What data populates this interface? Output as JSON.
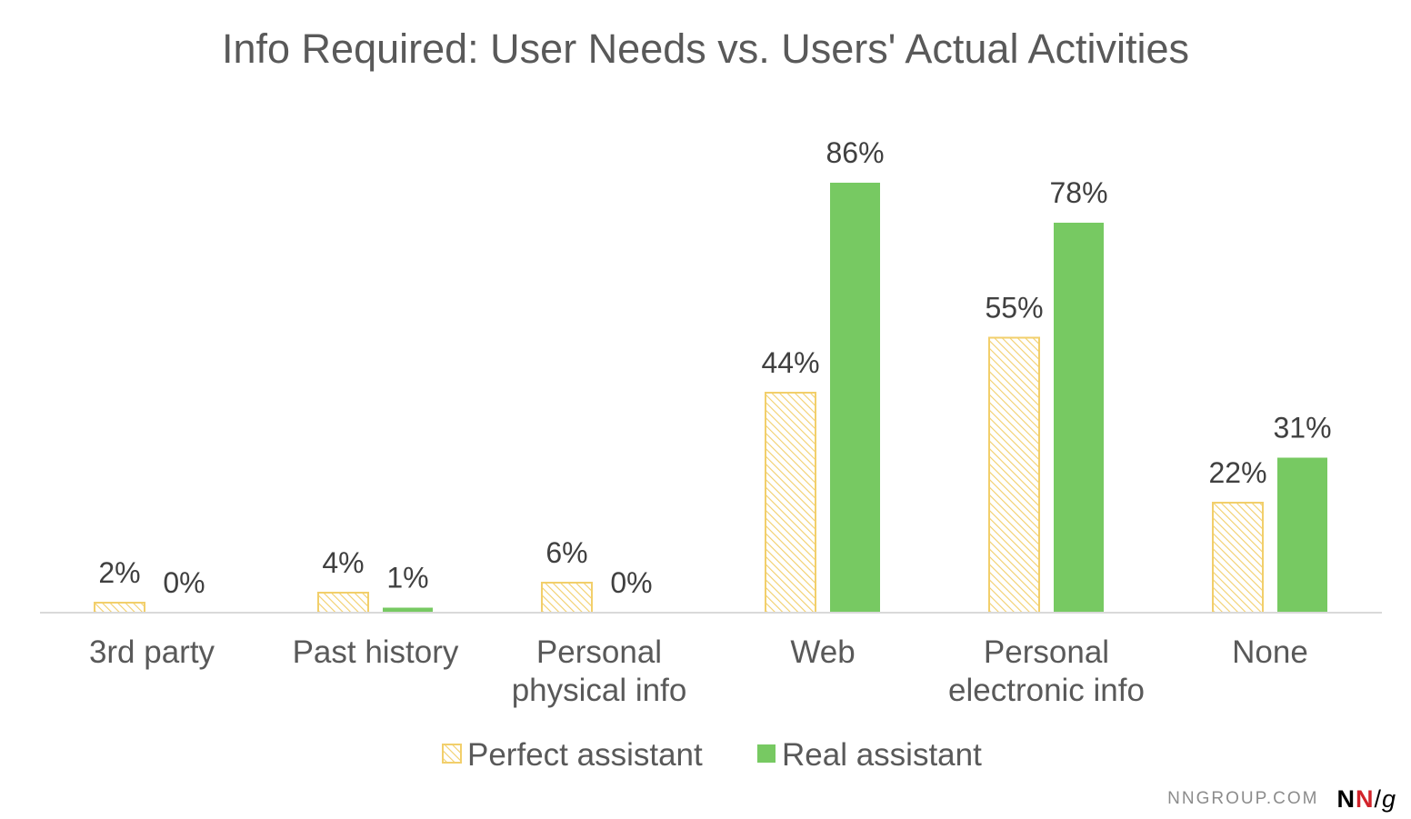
{
  "chart_data": {
    "type": "bar",
    "title": "Info Required: User Needs vs. Users' Actual Activities",
    "categories": [
      [
        "3rd party"
      ],
      [
        "Past history"
      ],
      [
        "Personal",
        "physical info"
      ],
      [
        "Web"
      ],
      [
        "Personal",
        "electronic info"
      ],
      [
        "None"
      ]
    ],
    "series": [
      {
        "name": "Perfect assistant",
        "values": [
          2,
          4,
          6,
          44,
          55,
          22
        ],
        "labels": [
          "2%",
          "4%",
          "6%",
          "44%",
          "55%",
          "22%"
        ],
        "color": "#f2cf6b",
        "pattern": "hatch"
      },
      {
        "name": "Real assistant",
        "values": [
          0,
          1,
          0,
          86,
          78,
          31
        ],
        "labels": [
          "0%",
          "1%",
          "0%",
          "86%",
          "78%",
          "31%"
        ],
        "color": "#77c962",
        "pattern": "solid"
      }
    ],
    "ylim": [
      0,
      100
    ],
    "grid": false,
    "legend": "bottom",
    "xlabel": "",
    "ylabel": ""
  },
  "branding": {
    "site": "NNGROUP.COM",
    "logo_n1": "N",
    "logo_n2": "N",
    "logo_slash": "/",
    "logo_g": "g"
  }
}
